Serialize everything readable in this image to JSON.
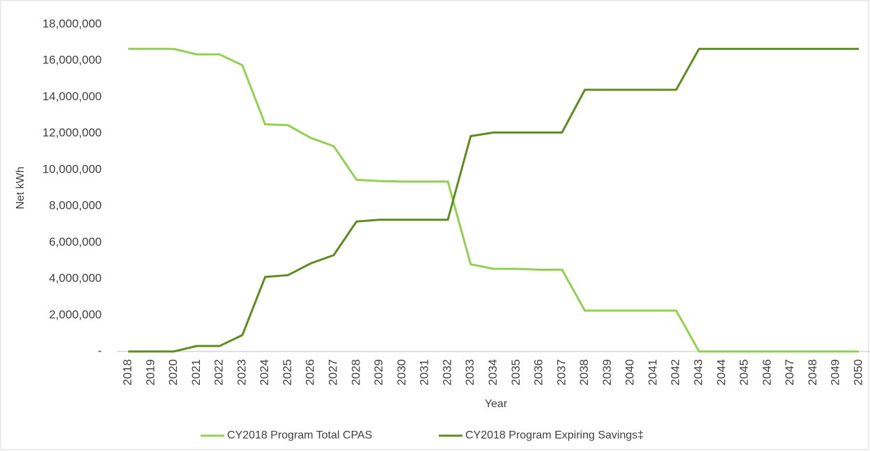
{
  "chart_data": {
    "type": "line",
    "y_label": "Net kWh",
    "x_label": "Year",
    "categories": [
      "2018",
      "2019",
      "2020",
      "2021",
      "2022",
      "2023",
      "2024",
      "2025",
      "2026",
      "2027",
      "2028",
      "2029",
      "2030",
      "2031",
      "2032",
      "2033",
      "2034",
      "2035",
      "2036",
      "2037",
      "2038",
      "2039",
      "2040",
      "2041",
      "2042",
      "2043",
      "2044",
      "2045",
      "2046",
      "2047",
      "2048",
      "2049",
      "2050"
    ],
    "series": [
      {
        "name": "CY2018 Program Total CPAS",
        "color": "#92d050",
        "values": [
          16650000,
          16650000,
          16650000,
          16350000,
          16350000,
          15750000,
          12500000,
          12450000,
          11750000,
          11300000,
          9450000,
          9380000,
          9350000,
          9350000,
          9350000,
          4800000,
          4550000,
          4550000,
          4500000,
          4500000,
          2250000,
          2250000,
          2250000,
          2250000,
          2250000,
          0,
          0,
          0,
          0,
          0,
          0,
          0,
          0
        ]
      },
      {
        "name": "CY2018 Program Expiring Savings‡",
        "color": "#5e8c1f",
        "values": [
          0,
          0,
          0,
          300000,
          300000,
          900000,
          4100000,
          4200000,
          4850000,
          5300000,
          7150000,
          7250000,
          7250000,
          7250000,
          7250000,
          11850000,
          12050000,
          12050000,
          12050000,
          12050000,
          14400000,
          14400000,
          14400000,
          14400000,
          14400000,
          16650000,
          16650000,
          16650000,
          16650000,
          16650000,
          16650000,
          16650000,
          16650000
        ]
      }
    ],
    "ylim": [
      0,
      18000000
    ],
    "yticks": [
      {
        "value": 0,
        "label": "-"
      },
      {
        "value": 2000000,
        "label": "2,000,000"
      },
      {
        "value": 4000000,
        "label": "4,000,000"
      },
      {
        "value": 6000000,
        "label": "6,000,000"
      },
      {
        "value": 8000000,
        "label": "8,000,000"
      },
      {
        "value": 10000000,
        "label": "10,000,000"
      },
      {
        "value": 12000000,
        "label": "12,000,000"
      },
      {
        "value": 14000000,
        "label": "14,000,000"
      },
      {
        "value": 16000000,
        "label": "16,000,000"
      },
      {
        "value": 18000000,
        "label": "18,000,000"
      }
    ],
    "grid": false,
    "legend": "bottom"
  }
}
